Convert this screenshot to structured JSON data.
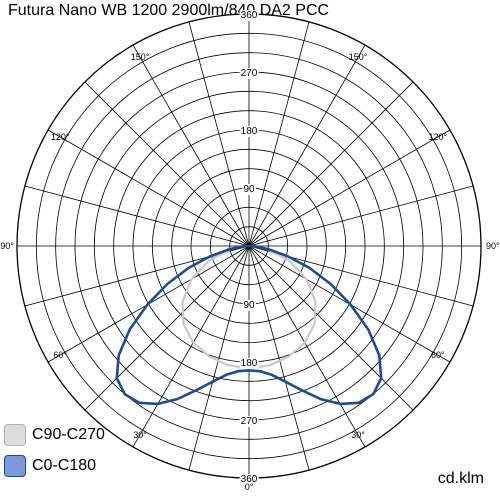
{
  "chart_data": {
    "type": "polar",
    "title": "Futura Nano WB 1200 2900lm/840 DA2 PCC",
    "unit": "cd.klm",
    "radial_ticks": [
      "90",
      "180",
      "270",
      "360"
    ],
    "radial_max": 360,
    "angle_labels": [
      {
        "deg": 150,
        "side": "left",
        "text": "150°"
      },
      {
        "deg": 150,
        "side": "right",
        "text": "150°"
      },
      {
        "deg": 120,
        "side": "left",
        "text": "120°"
      },
      {
        "deg": 120,
        "side": "right",
        "text": "120°"
      },
      {
        "deg": 90,
        "side": "left",
        "text": "90°"
      },
      {
        "deg": 90,
        "side": "right",
        "text": "90°"
      },
      {
        "deg": 60,
        "side": "left",
        "text": "60°"
      },
      {
        "deg": 60,
        "side": "right",
        "text": "60°"
      },
      {
        "deg": 30,
        "side": "left",
        "text": "30°"
      },
      {
        "deg": 30,
        "side": "right",
        "text": "30°"
      },
      {
        "deg": 0,
        "side": "bottom",
        "text": "0°"
      }
    ],
    "series": [
      {
        "name": "C90-C270",
        "color": "#c8c8c8",
        "fill": "#dcdcdc",
        "angles": [
          0,
          10,
          20,
          30,
          40,
          50,
          60,
          70,
          80,
          85,
          90
        ],
        "values": [
          190,
          188,
          182,
          173,
          158,
          135,
          103,
          66,
          28,
          12,
          3
        ]
      },
      {
        "name": "C0-C180",
        "color": "#1a4a9a",
        "fill": "#7a9ad8",
        "angles": [
          0,
          5,
          10,
          15,
          20,
          25,
          30,
          35,
          40,
          45,
          50,
          55,
          60,
          65,
          70,
          75,
          80,
          85,
          90
        ],
        "values": [
          193,
          195,
          203,
          218,
          238,
          262,
          283,
          297,
          300,
          290,
          264,
          226,
          182,
          140,
          100,
          63,
          33,
          14,
          3
        ]
      }
    ]
  }
}
